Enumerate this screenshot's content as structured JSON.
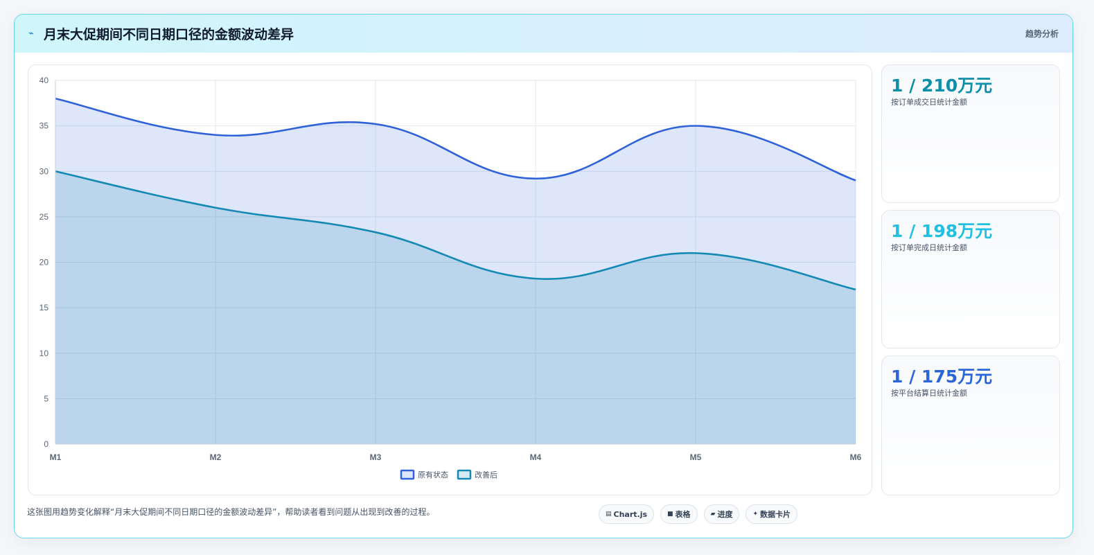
{
  "header": {
    "icon": "bolt-icon",
    "title": "月末大促期间不同日期口径的金额波动差异",
    "tag": "趋势分析"
  },
  "chart_data": {
    "type": "area",
    "categories": [
      "M1",
      "M2",
      "M3",
      "M4",
      "M5",
      "M6"
    ],
    "series": [
      {
        "name": "原有状态",
        "values": [
          38,
          34,
          35.2,
          29.2,
          35,
          29
        ],
        "color": "#2f62d8",
        "fill": "rgba(47,98,216,0.16)"
      },
      {
        "name": "改善后",
        "values": [
          30,
          26,
          23.3,
          18.2,
          21,
          17
        ],
        "color": "#1489b3",
        "fill": "rgba(20,137,179,0.18)"
      }
    ],
    "ylim": [
      0,
      40
    ],
    "yticks": [
      0,
      5,
      10,
      15,
      20,
      25,
      30,
      35,
      40
    ],
    "grid": true,
    "legend": "bottom"
  },
  "cards": [
    {
      "value": "1 / 210万元",
      "label": "按订单成交日统计金额",
      "color": "#0e8ea8"
    },
    {
      "value": "1 / 198万元",
      "label": "按订单完成日统计金额",
      "color": "#22c0e0"
    },
    {
      "value": "1 / 175万元",
      "label": "按平台结算日统计金额",
      "color": "#2b66d9"
    }
  ],
  "footer": {
    "description": "这张图用趋势变化解释“月末大促期间不同日期口径的金额波动差异”，帮助读者看到问题从出现到改善的过程。",
    "chips": [
      {
        "icon": "chart-icon",
        "label": "Chart.js"
      },
      {
        "icon": "table-icon",
        "label": "表格"
      },
      {
        "icon": "progress-icon",
        "label": "进度"
      },
      {
        "icon": "sparkle-icon",
        "label": "数据卡片"
      }
    ]
  }
}
